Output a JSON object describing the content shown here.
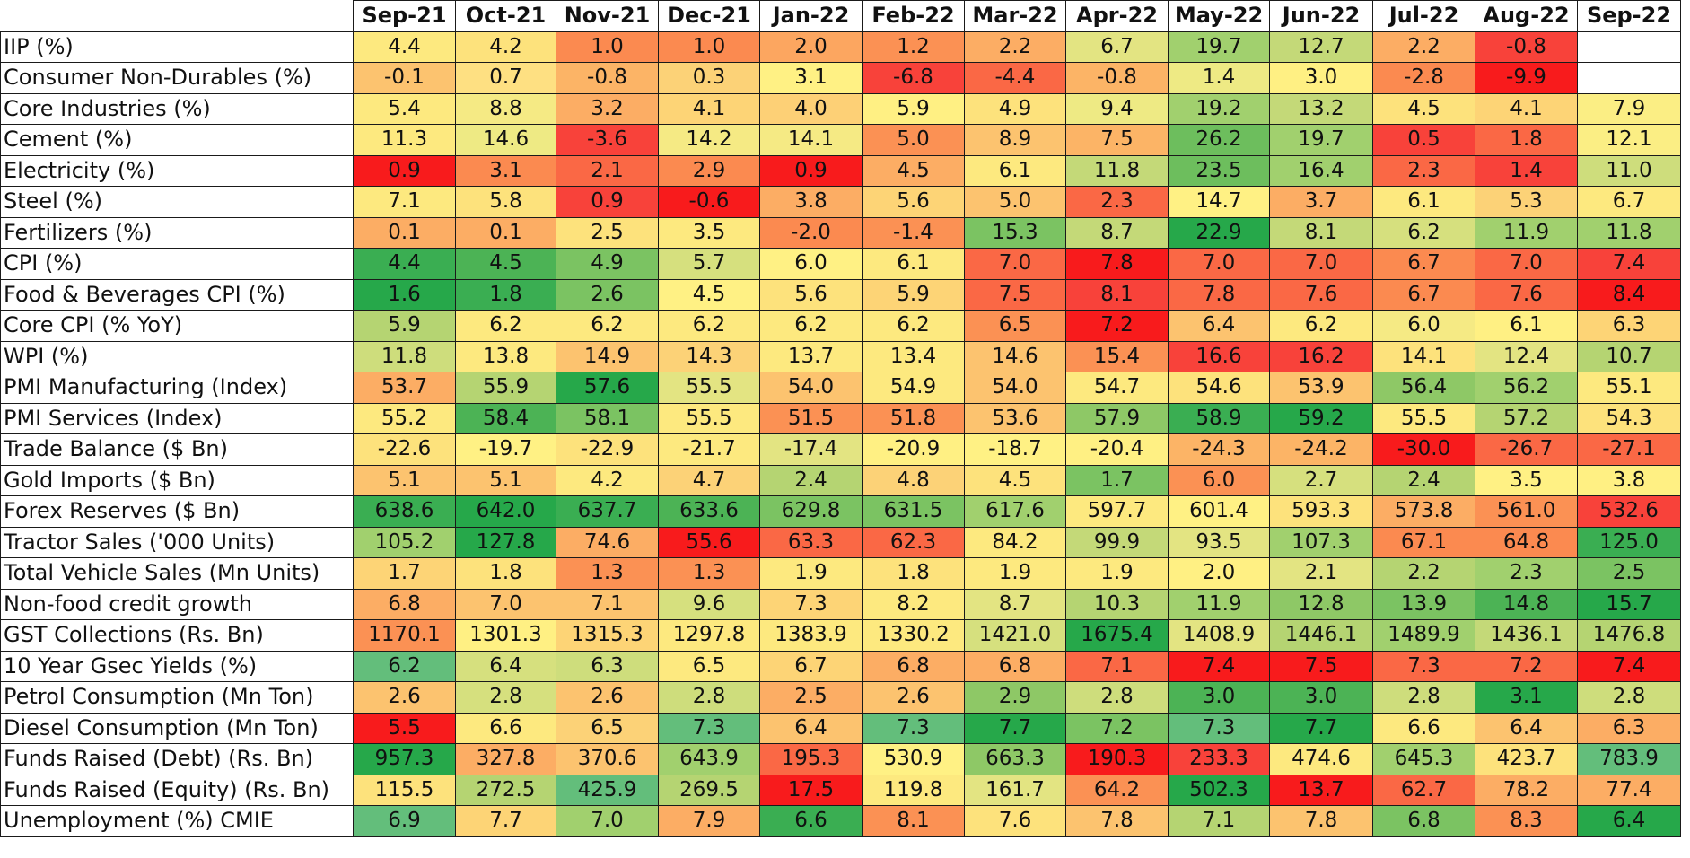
{
  "chart_data": {
    "type": "heatmap",
    "title": "",
    "color_scale": {
      "low": "#f8696b",
      "mid": "#ffeb84",
      "high": "#63be7b"
    },
    "columns": [
      "Sep-21",
      "Oct-21",
      "Nov-21",
      "Dec-21",
      "Jan-22",
      "Feb-22",
      "Mar-22",
      "Apr-22",
      "May-22",
      "Jun-22",
      "Jul-22",
      "Aug-22",
      "Sep-22"
    ],
    "rows": [
      {
        "label": "IIP (%)",
        "values": [
          "4.4",
          "4.2",
          "1.0",
          "1.0",
          "2.0",
          "1.2",
          "2.2",
          "6.7",
          "19.7",
          "12.7",
          "2.2",
          "-0.8",
          ""
        ],
        "colors": [
          "#fde97f",
          "#fde27c",
          "#fb8a50",
          "#fb8a50",
          "#fca660",
          "#fb9154",
          "#fcad64",
          "#e3e482",
          "#a1d06e",
          "#c4d978",
          "#fcad64",
          "#f8423a",
          "#ffffff"
        ]
      },
      {
        "label": "Consumer Non-Durables (%)",
        "values": [
          "-0.1",
          "0.7",
          "-0.8",
          "0.3",
          "3.1",
          "-6.8",
          "-4.4",
          "-0.8",
          "1.4",
          "3.0",
          "-2.8",
          "-9.9",
          ""
        ],
        "colors": [
          "#fcc36f",
          "#fee082",
          "#fcb466",
          "#fcd277",
          "#fff184",
          "#f8423a",
          "#fa6845",
          "#fcb466",
          "#eeea84",
          "#fff083",
          "#fb8a50",
          "#f81b1c",
          "#ffffff"
        ]
      },
      {
        "label": "Core Industries (%)",
        "values": [
          "5.4",
          "8.8",
          "3.2",
          "4.1",
          "4.0",
          "5.9",
          "4.9",
          "9.4",
          "19.2",
          "13.2",
          "4.5",
          "4.1",
          "7.9"
        ],
        "colors": [
          "#fde97f",
          "#f5ea84",
          "#fcad64",
          "#fdd476",
          "#fdd076",
          "#fff083",
          "#fde27c",
          "#eeea84",
          "#a1d06e",
          "#c4d978",
          "#fde27c",
          "#fdd476",
          "#fbee84"
        ]
      },
      {
        "label": "Cement (%)",
        "values": [
          "11.3",
          "14.6",
          "-3.6",
          "14.2",
          "14.1",
          "5.0",
          "8.9",
          "7.5",
          "26.2",
          "19.7",
          "0.5",
          "1.8",
          "12.1"
        ],
        "colors": [
          "#fde97f",
          "#eeea84",
          "#f8423a",
          "#f5ea84",
          "#f5ea84",
          "#fb9154",
          "#fcc36f",
          "#fcb466",
          "#6dbe5d",
          "#a1d06e",
          "#f8423a",
          "#fa6845",
          "#fbee84"
        ]
      },
      {
        "label": "Electricity (%)",
        "values": [
          "0.9",
          "3.1",
          "2.1",
          "2.9",
          "0.9",
          "4.5",
          "6.1",
          "11.8",
          "23.5",
          "16.4",
          "2.3",
          "1.4",
          "11.0"
        ],
        "colors": [
          "#f81b1c",
          "#fb8a50",
          "#fa6845",
          "#fb8a50",
          "#f81b1c",
          "#fcad64",
          "#fde97f",
          "#c4d978",
          "#6dbe5d",
          "#a1d06e",
          "#fa6845",
          "#f8423a",
          "#cedd7c"
        ]
      },
      {
        "label": "Steel (%)",
        "values": [
          "7.1",
          "5.8",
          "0.9",
          "-0.6",
          "3.8",
          "5.6",
          "5.0",
          "2.3",
          "14.7",
          "3.7",
          "6.1",
          "5.3",
          "6.7"
        ],
        "colors": [
          "#fde97f",
          "#fde27c",
          "#f8423a",
          "#f81b1c",
          "#fcad64",
          "#fdd476",
          "#fcc36f",
          "#fa6845",
          "#fff184",
          "#fcad64",
          "#fde97f",
          "#fcd277",
          "#fde97f"
        ]
      },
      {
        "label": "Fertilizers (%)",
        "values": [
          "0.1",
          "0.1",
          "2.5",
          "3.5",
          "-2.0",
          "-1.4",
          "15.3",
          "8.7",
          "22.9",
          "8.1",
          "6.2",
          "11.9",
          "11.8"
        ],
        "colors": [
          "#fcad64",
          "#fcad64",
          "#fde27c",
          "#fde97f",
          "#fb8a50",
          "#fb9154",
          "#7bc362",
          "#c4d978",
          "#26a84a",
          "#c4d978",
          "#d6e07e",
          "#a1d06e",
          "#a1d06e"
        ]
      },
      {
        "label": "CPI (%)",
        "values": [
          "4.4",
          "4.5",
          "4.9",
          "5.7",
          "6.0",
          "6.1",
          "7.0",
          "7.8",
          "7.0",
          "7.0",
          "6.7",
          "7.0",
          "7.4"
        ],
        "colors": [
          "#3aae52",
          "#4cb355",
          "#7bc362",
          "#d6e07e",
          "#fff184",
          "#fde97f",
          "#fa6845",
          "#f81b1c",
          "#fa6845",
          "#fa6845",
          "#fb8a50",
          "#fa6845",
          "#f8423a"
        ]
      },
      {
        "label": "Food & Beverages CPI (%)",
        "values": [
          "1.6",
          "1.8",
          "2.6",
          "4.5",
          "5.6",
          "5.9",
          "7.5",
          "8.1",
          "7.8",
          "7.6",
          "6.7",
          "7.6",
          "8.4"
        ],
        "colors": [
          "#26a84a",
          "#3aae52",
          "#7bc362",
          "#fff184",
          "#fde27c",
          "#fdd476",
          "#fa6845",
          "#f8423a",
          "#fa6845",
          "#fa6845",
          "#fb8a50",
          "#fa6845",
          "#f81b1c"
        ]
      },
      {
        "label": "Core CPI (% YoY)",
        "values": [
          "5.9",
          "6.2",
          "6.2",
          "6.2",
          "6.2",
          "6.2",
          "6.5",
          "7.2",
          "6.4",
          "6.2",
          "6.0",
          "6.1",
          "6.3"
        ],
        "colors": [
          "#b5d472",
          "#fde97f",
          "#fde97f",
          "#fde97f",
          "#fde97f",
          "#fde97f",
          "#fb9154",
          "#f81b1c",
          "#fcc36f",
          "#fde97f",
          "#f5ea84",
          "#fff083",
          "#fdd476"
        ]
      },
      {
        "label": "WPI (%)",
        "values": [
          "11.8",
          "13.8",
          "14.9",
          "14.3",
          "13.7",
          "13.4",
          "14.6",
          "15.4",
          "16.6",
          "16.2",
          "14.1",
          "12.4",
          "10.7"
        ],
        "colors": [
          "#cedd7c",
          "#fde97f",
          "#fcc36f",
          "#fcd277",
          "#fde97f",
          "#fde97f",
          "#fcc36f",
          "#fb9154",
          "#f8423a",
          "#f8423a",
          "#fde27c",
          "#e3e482",
          "#b5d472"
        ]
      },
      {
        "label": "PMI Manufacturing (Index)",
        "values": [
          "53.7",
          "55.9",
          "57.6",
          "55.5",
          "54.0",
          "54.9",
          "54.0",
          "54.7",
          "54.6",
          "53.9",
          "56.4",
          "56.2",
          "55.1"
        ],
        "colors": [
          "#fcad64",
          "#b5d472",
          "#26a84a",
          "#e3e482",
          "#fcc36f",
          "#fde97f",
          "#fcc36f",
          "#fde97f",
          "#fde27c",
          "#fcc36f",
          "#8ec866",
          "#a1d06e",
          "#fde97f"
        ]
      },
      {
        "label": "PMI Services (Index)",
        "values": [
          "55.2",
          "58.4",
          "58.1",
          "55.5",
          "51.5",
          "51.8",
          "53.6",
          "57.9",
          "58.9",
          "59.2",
          "55.5",
          "57.2",
          "54.3"
        ],
        "colors": [
          "#fde97f",
          "#4cb355",
          "#7bc362",
          "#fde97f",
          "#fb9154",
          "#fb9154",
          "#fcc36f",
          "#8ec866",
          "#3aae52",
          "#26a84a",
          "#fde97f",
          "#b5d472",
          "#fde27c"
        ]
      },
      {
        "label": "Trade Balance ($ Bn)",
        "values": [
          "-22.6",
          "-19.7",
          "-22.9",
          "-21.7",
          "-17.4",
          "-20.9",
          "-18.7",
          "-20.4",
          "-24.3",
          "-24.2",
          "-30.0",
          "-26.7",
          "-27.1"
        ],
        "colors": [
          "#fde27c",
          "#fff184",
          "#fde27c",
          "#fde97f",
          "#e3e482",
          "#fff083",
          "#fff184",
          "#fff083",
          "#fcb466",
          "#fcb466",
          "#f81b1c",
          "#fa6845",
          "#fa6845"
        ]
      },
      {
        "label": "Gold Imports ($ Bn)",
        "values": [
          "5.1",
          "5.1",
          "4.2",
          "4.7",
          "2.4",
          "4.8",
          "4.5",
          "1.7",
          "6.0",
          "2.7",
          "2.4",
          "3.5",
          "3.8"
        ],
        "colors": [
          "#fcc36f",
          "#fcc36f",
          "#fde97f",
          "#fcd277",
          "#b5d472",
          "#fcd277",
          "#fde27c",
          "#7bc362",
          "#fb9154",
          "#d6e07e",
          "#b5d472",
          "#fff184",
          "#fff083"
        ]
      },
      {
        "label": "Forex Reserves ($ Bn)",
        "values": [
          "638.6",
          "642.0",
          "637.7",
          "633.6",
          "629.8",
          "631.5",
          "617.6",
          "597.7",
          "601.4",
          "593.3",
          "573.8",
          "561.0",
          "532.6"
        ],
        "colors": [
          "#3aae52",
          "#26a84a",
          "#3aae52",
          "#4cb355",
          "#7bc362",
          "#7bc362",
          "#a1d06e",
          "#fde97f",
          "#fff184",
          "#fde27c",
          "#fcad64",
          "#fb9154",
          "#f8423a"
        ]
      },
      {
        "label": "Tractor Sales ('000 Units)",
        "values": [
          "105.2",
          "127.8",
          "74.6",
          "55.6",
          "63.3",
          "62.3",
          "84.2",
          "99.9",
          "93.5",
          "107.3",
          "67.1",
          "64.8",
          "125.0"
        ],
        "colors": [
          "#a1d06e",
          "#26a84a",
          "#fcad64",
          "#f81b1c",
          "#fa6845",
          "#fa6845",
          "#fde97f",
          "#c4d978",
          "#e3e482",
          "#a1d06e",
          "#fb8a50",
          "#fb8a50",
          "#3aae52"
        ]
      },
      {
        "label": "Total Vehicle Sales (Mn Units)",
        "values": [
          "1.7",
          "1.8",
          "1.3",
          "1.3",
          "1.9",
          "1.8",
          "1.9",
          "1.9",
          "2.0",
          "2.1",
          "2.2",
          "2.3",
          "2.5"
        ],
        "colors": [
          "#fdd476",
          "#fde27c",
          "#fb9154",
          "#fb9154",
          "#fde97f",
          "#fde27c",
          "#fde97f",
          "#fde97f",
          "#fff083",
          "#e3e482",
          "#b5d472",
          "#a1d06e",
          "#7bc362"
        ]
      },
      {
        "label": "Non-food credit growth",
        "values": [
          "6.8",
          "7.0",
          "7.1",
          "9.6",
          "7.3",
          "8.2",
          "8.7",
          "10.3",
          "11.9",
          "12.8",
          "13.9",
          "14.8",
          "15.7"
        ],
        "colors": [
          "#fcad64",
          "#fcc36f",
          "#fcc36f",
          "#d6e07e",
          "#fdd476",
          "#fde97f",
          "#e3e482",
          "#b5d472",
          "#a1d06e",
          "#8ec866",
          "#7bc362",
          "#4cb355",
          "#26a84a"
        ]
      },
      {
        "label": "GST Collections (Rs. Bn)",
        "values": [
          "1170.1",
          "1301.3",
          "1315.3",
          "1297.8",
          "1383.9",
          "1330.2",
          "1421.0",
          "1675.4",
          "1408.9",
          "1446.1",
          "1489.9",
          "1436.1",
          "1476.8"
        ],
        "colors": [
          "#fb9154",
          "#fff083",
          "#fdd476",
          "#fde97f",
          "#fde97f",
          "#fde97f",
          "#d6e07e",
          "#26a84a",
          "#e3e482",
          "#b5d472",
          "#a1d06e",
          "#c4d978",
          "#b5d472"
        ]
      },
      {
        "label": "10 Year Gsec Yields (%)",
        "values": [
          "6.2",
          "6.4",
          "6.3",
          "6.5",
          "6.7",
          "6.8",
          "6.8",
          "7.1",
          "7.4",
          "7.5",
          "7.3",
          "7.2",
          "7.4"
        ],
        "colors": [
          "#63be7b",
          "#d6e07e",
          "#cedd7c",
          "#fde97f",
          "#fdd476",
          "#fcad64",
          "#fcad64",
          "#fa6845",
          "#f81b1c",
          "#f81b1c",
          "#fa6845",
          "#fa6845",
          "#f81b1c"
        ]
      },
      {
        "label": "Petrol Consumption (Mn Ton)",
        "values": [
          "2.6",
          "2.8",
          "2.6",
          "2.8",
          "2.5",
          "2.6",
          "2.9",
          "2.8",
          "3.0",
          "3.0",
          "2.8",
          "3.1",
          "2.8"
        ],
        "colors": [
          "#fcc36f",
          "#d6e07e",
          "#fcc36f",
          "#cedd7c",
          "#fcad64",
          "#fcc36f",
          "#8ec866",
          "#cedd7c",
          "#4cb355",
          "#4cb355",
          "#cedd7c",
          "#26a84a",
          "#cedd7c"
        ]
      },
      {
        "label": "Diesel Consumption (Mn Ton)",
        "values": [
          "5.5",
          "6.6",
          "6.5",
          "7.3",
          "6.4",
          "7.3",
          "7.7",
          "7.2",
          "7.3",
          "7.7",
          "6.6",
          "6.4",
          "6.3"
        ],
        "colors": [
          "#f81b1c",
          "#fde97f",
          "#fcd277",
          "#63be7b",
          "#fcc36f",
          "#63be7b",
          "#26a84a",
          "#7bc362",
          "#63be7b",
          "#26a84a",
          "#fde97f",
          "#fcc36f",
          "#fcad64"
        ]
      },
      {
        "label": "Funds Raised (Debt) (Rs. Bn)",
        "values": [
          "957.3",
          "327.8",
          "370.6",
          "643.9",
          "195.3",
          "530.9",
          "663.3",
          "190.3",
          "233.3",
          "474.6",
          "645.3",
          "423.7",
          "783.9"
        ],
        "colors": [
          "#26a84a",
          "#fcad64",
          "#fcc36f",
          "#a1d06e",
          "#fa6845",
          "#fff184",
          "#8ec866",
          "#f81b1c",
          "#f8423a",
          "#fde97f",
          "#a1d06e",
          "#fde27c",
          "#63be7b"
        ]
      },
      {
        "label": "Funds Raised (Equity) (Rs. Bn)",
        "values": [
          "115.5",
          "272.5",
          "425.9",
          "269.5",
          "17.5",
          "119.8",
          "161.7",
          "64.2",
          "502.3",
          "13.7",
          "62.7",
          "78.2",
          "77.4"
        ],
        "colors": [
          "#fde27c",
          "#b5d472",
          "#63be7b",
          "#b5d472",
          "#f81b1c",
          "#fde97f",
          "#e3e482",
          "#fb9154",
          "#26a84a",
          "#f81b1c",
          "#fa6845",
          "#fcad64",
          "#fcad64"
        ]
      },
      {
        "label": "Unemployment (%) CMIE",
        "values": [
          "6.9",
          "7.7",
          "7.0",
          "7.9",
          "6.6",
          "8.1",
          "7.6",
          "7.8",
          "7.1",
          "7.8",
          "6.8",
          "8.3",
          "6.4"
        ],
        "colors": [
          "#63be7b",
          "#fdd476",
          "#a1d06e",
          "#fcad64",
          "#3aae52",
          "#fb9154",
          "#fde27c",
          "#fcc36f",
          "#b5d472",
          "#fcc36f",
          "#7bc362",
          "#fb9154",
          "#26a84a"
        ]
      }
    ]
  }
}
